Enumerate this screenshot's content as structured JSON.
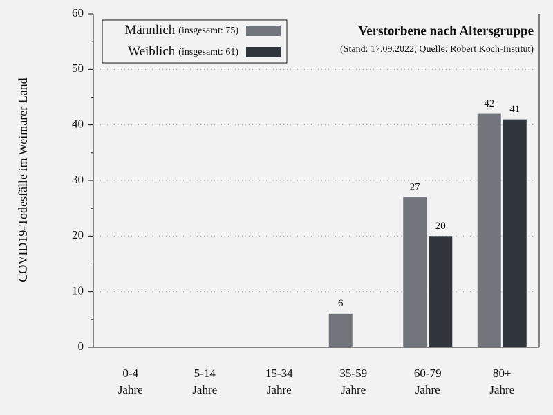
{
  "chart_data": {
    "type": "bar",
    "title": "Verstorbene nach Altersgruppe",
    "subtitle": "(Stand: 17.09.2022; Quelle: Robert Koch-Institut)",
    "y_label": "COVID19-Todesfälle im Weimarer Land",
    "categories": [
      "0-4\nJahre",
      "5-14\nJahre",
      "15-34\nJahre",
      "35-59\nJahre",
      "60-79\nJahre",
      "80+\nJahre"
    ],
    "series": [
      {
        "name": "Männlich",
        "legend_note": "(insgesamt: 75)",
        "color": "#72757c",
        "values": [
          0,
          0,
          0,
          6,
          27,
          42
        ]
      },
      {
        "name": "Weiblich",
        "legend_note": "(insgesamt: 61)",
        "color": "#30343b",
        "values": [
          0,
          0,
          0,
          0,
          20,
          41
        ]
      }
    ],
    "ylim": [
      0,
      60
    ],
    "yticks": [
      0,
      10,
      20,
      30,
      40,
      50,
      60
    ],
    "yminor_ticks": [
      5,
      15,
      25,
      35,
      45,
      55
    ],
    "grid": true
  }
}
